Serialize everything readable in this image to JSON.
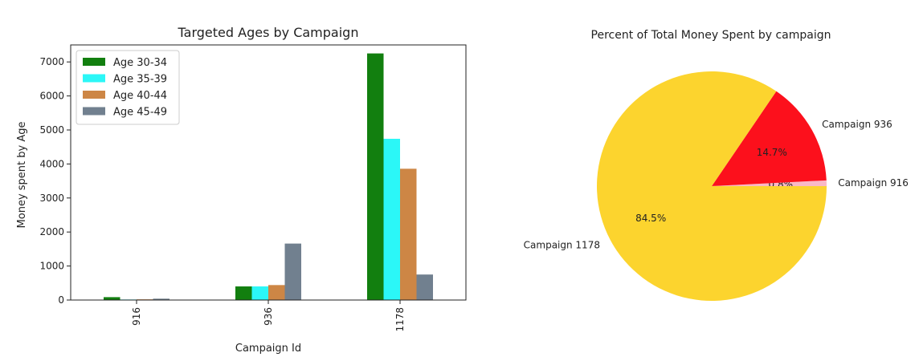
{
  "chart_data": [
    {
      "type": "bar",
      "title": "Targeted Ages by Campaign",
      "xlabel": "Campaign Id",
      "ylabel": "Money spent by Age",
      "categories": [
        "916",
        "936",
        "1178"
      ],
      "ylim": [
        0,
        7500
      ],
      "yticks": [
        0,
        1000,
        2000,
        3000,
        4000,
        5000,
        6000,
        7000
      ],
      "legend_position": "top-left",
      "grid": false,
      "series": [
        {
          "name": "Age 30-34",
          "color": "#127f0f",
          "values": [
            85,
            400,
            7250
          ]
        },
        {
          "name": "Age 35-39",
          "color": "#2bf7f7",
          "values": [
            15,
            400,
            4740
          ]
        },
        {
          "name": "Age 40-44",
          "color": "#cd8645",
          "values": [
            20,
            440,
            3860
          ]
        },
        {
          "name": "Age 45-49",
          "color": "#71808f",
          "values": [
            40,
            1660,
            750
          ]
        }
      ]
    },
    {
      "type": "pie",
      "title": "Percent of Total Money Spent by campaign",
      "slices": [
        {
          "label": "Campaign 916",
          "value": 0.8,
          "pct_label": "0.8%",
          "color": "#f9b9c6"
        },
        {
          "label": "Campaign 936",
          "value": 14.7,
          "pct_label": "14.7%",
          "color": "#fc101c"
        },
        {
          "label": "Campaign 1178",
          "value": 84.5,
          "pct_label": "84.5%",
          "color": "#fcd42e"
        }
      ]
    }
  ]
}
